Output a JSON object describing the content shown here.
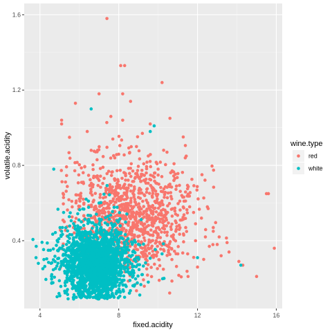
{
  "chart_data": {
    "type": "scatter",
    "title": "",
    "xlabel": "fixed.acidity",
    "ylabel": "volatile.acidity",
    "xlim": [
      3.2,
      16.3
    ],
    "ylim": [
      0.04,
      1.66
    ],
    "x_ticks": [
      4,
      8,
      12,
      16
    ],
    "y_ticks": [
      0.4,
      0.8,
      1.2,
      1.6
    ],
    "grid": true,
    "legend": {
      "title": "wine.type",
      "placement": "right",
      "entries": [
        {
          "label": "red",
          "color": "#F8766D"
        },
        {
          "label": "white",
          "color": "#00BFC4"
        }
      ]
    },
    "series": [
      {
        "name": "red",
        "color": "#F8766D",
        "x": [
          7.4,
          8.1,
          8.3,
          8.2,
          10.2,
          5.8,
          5.1,
          5.1,
          6.4,
          9.6,
          10.6,
          9.2,
          7.0,
          8.6,
          7.6,
          8.2,
          15.5,
          15.6,
          15.9,
          15.0,
          13.2,
          14.3,
          12.5,
          11.8,
          12.8,
          10.8,
          11.2,
          11.9,
          6.6,
          6.9,
          7.2,
          7.8,
          8.9,
          9.4,
          10.0,
          10.6,
          11.1,
          11.6,
          12.2,
          12.8,
          13.1,
          13.5,
          8.4,
          9.0,
          9.8,
          10.4,
          11.4,
          12.4,
          13.0,
          7.0,
          7.5,
          8.0,
          8.5,
          9.1,
          9.7,
          10.3,
          10.9,
          11.3,
          11.9,
          12.6,
          6.2,
          6.8,
          7.3,
          7.9,
          8.7,
          9.3,
          9.9,
          10.5,
          11.0,
          8.0,
          9.2,
          10.7,
          12.0,
          13.6,
          14.1,
          7.7,
          9.5,
          11.5
        ],
        "y": [
          1.58,
          1.33,
          1.33,
          1.18,
          1.24,
          1.13,
          1.04,
          1.02,
          0.98,
          1.02,
          1.05,
          0.97,
          1.18,
          1.14,
          1.06,
          1.04,
          0.65,
          0.65,
          0.36,
          0.21,
          0.32,
          0.27,
          0.58,
          0.55,
          0.47,
          0.72,
          0.64,
          0.49,
          0.88,
          0.83,
          0.79,
          0.84,
          0.9,
          0.76,
          0.78,
          0.7,
          0.61,
          0.58,
          0.52,
          0.45,
          0.42,
          0.39,
          0.68,
          0.63,
          0.57,
          0.52,
          0.47,
          0.42,
          0.38,
          0.72,
          0.67,
          0.63,
          0.59,
          0.55,
          0.51,
          0.48,
          0.45,
          0.43,
          0.4,
          0.37,
          0.62,
          0.58,
          0.55,
          0.51,
          0.47,
          0.44,
          0.4,
          0.37,
          0.33,
          0.4,
          0.36,
          0.3,
          0.26,
          0.34,
          0.29,
          0.94,
          0.85,
          0.33
        ]
      },
      {
        "name": "white",
        "color": "#00BFC4",
        "x": [
          6.6,
          9.8,
          9.6,
          4.7,
          4.2,
          3.8,
          4.6,
          5.4,
          5.1,
          14.2,
          12.0,
          10.3,
          9.5,
          10.2,
          6.5,
          7.2,
          6.8,
          7.0,
          6.2,
          7.6,
          6.0,
          7.4,
          6.4,
          7.8,
          5.8,
          8.1,
          6.6,
          7.1,
          6.9,
          5.6,
          8.4,
          6.3,
          7.5,
          6.7,
          5.9,
          8.7,
          7.3,
          6.1,
          8.9,
          5.4,
          9.2,
          7.9,
          5.2,
          6.5,
          7.0
        ],
        "y": [
          1.1,
          1.01,
          0.98,
          0.78,
          0.3,
          0.31,
          0.22,
          0.36,
          0.45,
          0.27,
          0.31,
          0.2,
          0.18,
          0.33,
          0.27,
          0.26,
          0.31,
          0.22,
          0.34,
          0.29,
          0.24,
          0.36,
          0.19,
          0.28,
          0.32,
          0.23,
          0.4,
          0.35,
          0.16,
          0.27,
          0.3,
          0.45,
          0.18,
          0.21,
          0.38,
          0.26,
          0.14,
          0.5,
          0.31,
          0.24,
          0.22,
          0.42,
          0.55,
          0.12,
          0.6
        ]
      }
    ]
  }
}
